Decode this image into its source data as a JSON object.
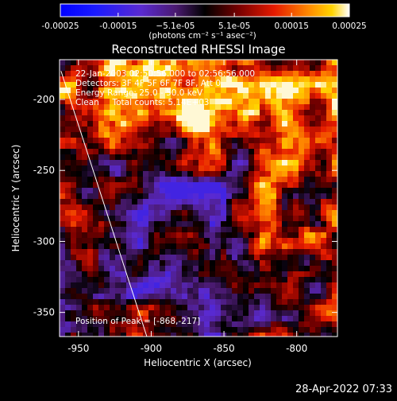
{
  "chart_data": {
    "type": "heatmap",
    "title": "Reconstructed RHESSI Image",
    "xlabel": "Heliocentric X (arcsec)",
    "ylabel": "Heliocentric Y (arcsec)",
    "xlim": [
      -963,
      -772
    ],
    "ylim": [
      -367,
      -172
    ],
    "x_ticks": [
      -950,
      -900,
      -850,
      -800
    ],
    "y_ticks": [
      -200,
      -250,
      -300,
      -350
    ],
    "colorbar": {
      "min": -0.00025,
      "max": 0.00025,
      "tick_values": [
        -0.00025,
        -0.00015,
        -5.1e-05,
        5.1e-05,
        0.00015,
        0.00025
      ],
      "tick_labels": [
        "-0.00025",
        "-0.00015",
        "−5.1e-05",
        "5.1e-05",
        "0.00015",
        "0.00025"
      ],
      "units_label": "(photons cm⁻² s⁻¹ asec⁻²)"
    },
    "annotations": [
      "22-Jan-2003 02:50:56.000 to 02:56:56.000",
      "Detectors: 3F 4F 5F 6F 7F 8F, Att 0",
      "Energy Range: 25.0 - 50.0 keV",
      "Clean     Total counts: 5.14E+03"
    ],
    "peak_label": "Position of Peak = [-868,-217]",
    "peak": [
      -868,
      -217
    ],
    "limb_line": [
      [
        -962,
        -180
      ],
      [
        -903,
        -367
      ]
    ],
    "grid": false
  },
  "footer": {
    "timestamp": "28-Apr-2022 07:33"
  }
}
